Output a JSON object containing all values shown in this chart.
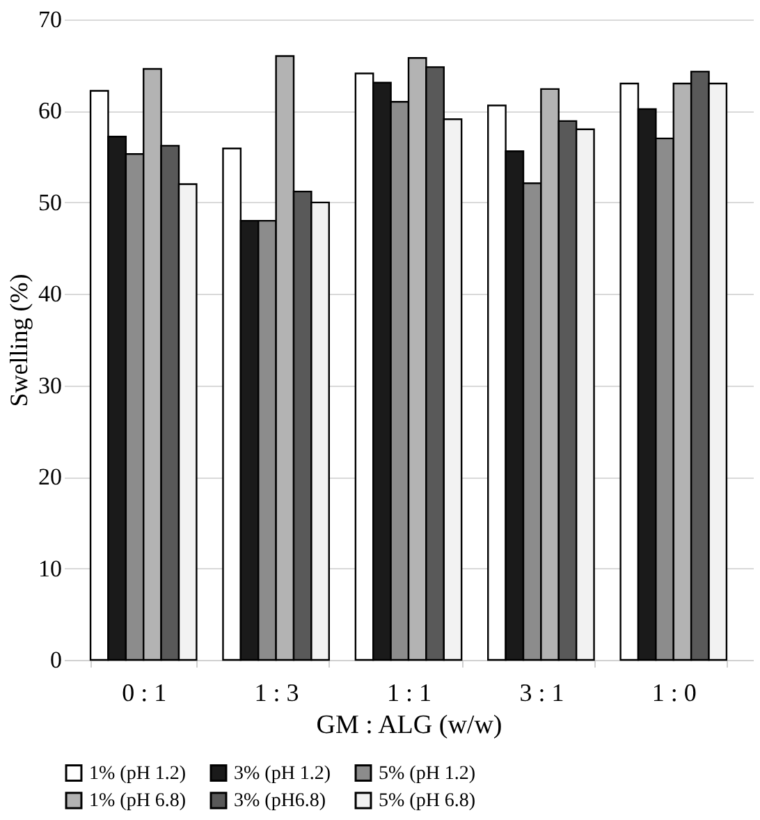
{
  "chart_data": {
    "type": "bar",
    "xlabel": "GM : ALG (w/w)",
    "ylabel": "Swelling (%)",
    "categories": [
      "0 : 1",
      "1 : 3",
      "1 : 1",
      "3 : 1",
      "1 : 0"
    ],
    "series": [
      {
        "name": "1% (pH 1.2)",
        "color": "#ffffff",
        "values": [
          62.2,
          55.9,
          64.1,
          60.6,
          63.0
        ]
      },
      {
        "name": "3% (pH 1.2)",
        "color": "#1a1a1a",
        "values": [
          57.2,
          48.0,
          63.1,
          55.6,
          60.2
        ]
      },
      {
        "name": "5% (pH 1.2)",
        "color": "#8c8c8c",
        "values": [
          55.3,
          48.0,
          61.0,
          52.1,
          57.0
        ]
      },
      {
        "name": "1% (pH 6.8)",
        "color": "#b3b3b3",
        "values": [
          64.6,
          66.0,
          65.8,
          62.4,
          63.0
        ]
      },
      {
        "name": "3% (pH6.8)",
        "color": "#595959",
        "values": [
          56.2,
          51.2,
          64.8,
          58.9,
          64.3
        ]
      },
      {
        "name": "5% (pH 6.8)",
        "color": "#f2f2f2",
        "values": [
          52.0,
          50.0,
          59.1,
          58.0,
          63.0
        ]
      }
    ],
    "ylim": [
      0,
      70
    ],
    "yticks": [
      0,
      10,
      20,
      30,
      40,
      50,
      60,
      70
    ],
    "grid": "y",
    "legend": "bottom"
  }
}
